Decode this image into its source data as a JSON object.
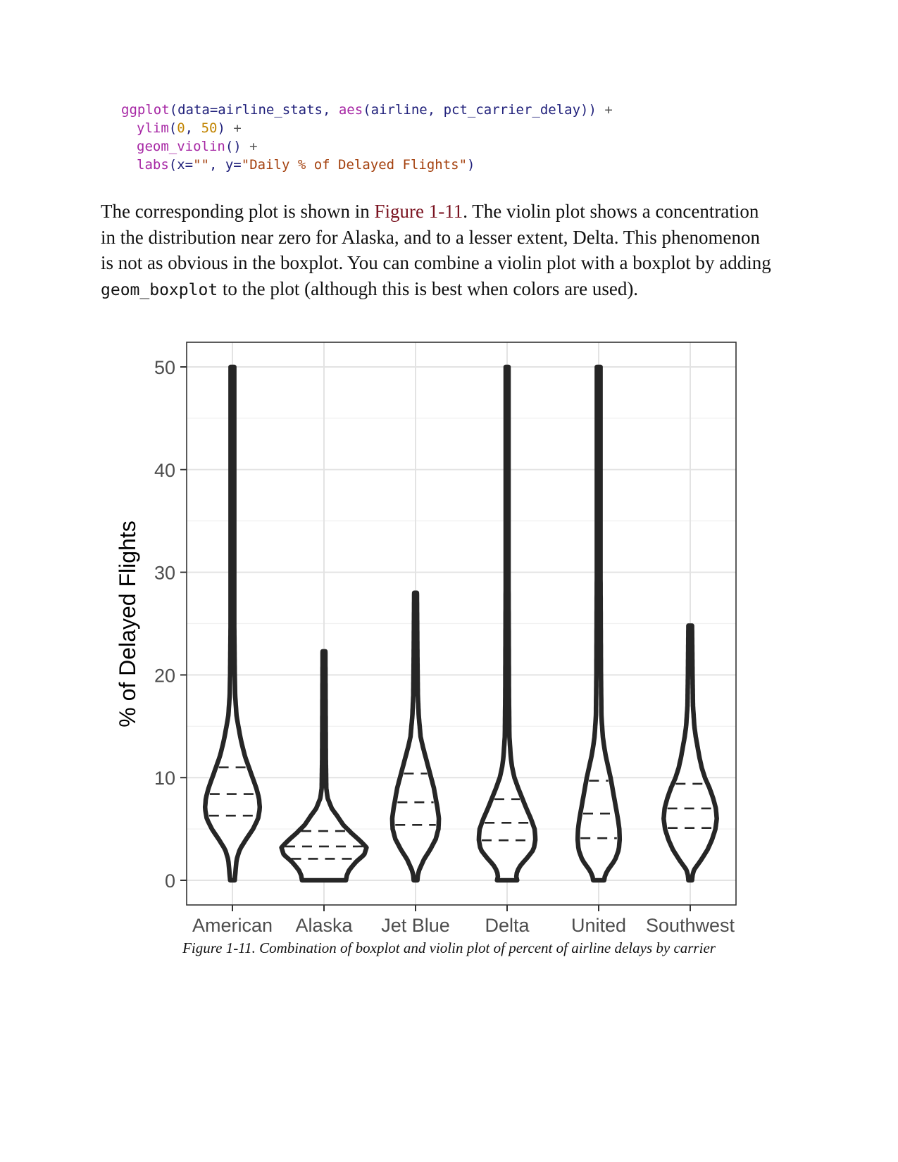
{
  "code": {
    "line1": {
      "fn": "ggplot",
      "a": "(data=airline_stats, ",
      "fn2": "aes",
      "b": "(airline, pct_carrier_delay)) ",
      "op": "+"
    },
    "line2": {
      "fn": "ylim",
      "a": "(",
      "n1": "0",
      "b": ", ",
      "n2": "50",
      "c": ") ",
      "op": "+"
    },
    "line3": {
      "fn": "geom_violin",
      "a": "() ",
      "op": "+"
    },
    "line4": {
      "fn": "labs",
      "a": "(x=",
      "s1": "\"\"",
      "b": ", y=",
      "s2": "\"Daily % of Delayed Flights\"",
      "c": ")"
    }
  },
  "paragraph": {
    "t1": "The corresponding plot is shown in ",
    "xref": "Figure 1-11",
    "t2": ". The violin plot shows a concentration in the distribution near zero for Alaska, and to a lesser extent, Delta. This phenomenon is not as obvious in the boxplot. You can combine a violin plot with a boxplot by adding ",
    "code": "geom_boxplot",
    "t3": " to the plot (although this is best when colors are used)."
  },
  "caption": "Figure 1-11. Combination of boxplot and violin plot of percent of airline delays by carrier",
  "chart_data": {
    "type": "violin",
    "ylabel": "% of Delayed Flights",
    "xlabel": "",
    "ylim": [
      -2.4,
      52.4
    ],
    "yticks": [
      0,
      10,
      20,
      30,
      40,
      50
    ],
    "grid": true,
    "categories": [
      "American",
      "Alaska",
      "Jet Blue",
      "Delta",
      "United",
      "Southwest"
    ],
    "series": [
      {
        "category": "American",
        "min": 0,
        "max": 50,
        "quartiles": [
          6.3,
          8.4,
          11.0
        ],
        "profile": [
          [
            0,
            0.05
          ],
          [
            0.5,
            0.06
          ],
          [
            1,
            0.07
          ],
          [
            2,
            0.09
          ],
          [
            3,
            0.16
          ],
          [
            4,
            0.3
          ],
          [
            5,
            0.45
          ],
          [
            6,
            0.56
          ],
          [
            7,
            0.6
          ],
          [
            8,
            0.58
          ],
          [
            9,
            0.52
          ],
          [
            10,
            0.44
          ],
          [
            11,
            0.36
          ],
          [
            12,
            0.28
          ],
          [
            13,
            0.22
          ],
          [
            14,
            0.17
          ],
          [
            15,
            0.13
          ],
          [
            16,
            0.09
          ],
          [
            18,
            0.06
          ],
          [
            20,
            0.05
          ],
          [
            25,
            0.04
          ],
          [
            35,
            0.04
          ],
          [
            50,
            0.04
          ]
        ]
      },
      {
        "category": "Alaska",
        "min": 0,
        "max": 22.3,
        "quartiles": [
          2.1,
          3.3,
          4.8
        ],
        "profile": [
          [
            0,
            0.48
          ],
          [
            0.5,
            0.5
          ],
          [
            1,
            0.55
          ],
          [
            1.8,
            0.7
          ],
          [
            2.5,
            0.88
          ],
          [
            3.2,
            0.93
          ],
          [
            3.8,
            0.8
          ],
          [
            4.6,
            0.6
          ],
          [
            5.4,
            0.42
          ],
          [
            6.2,
            0.3
          ],
          [
            7,
            0.17
          ],
          [
            8,
            0.08
          ],
          [
            9,
            0.05
          ],
          [
            12,
            0.04
          ],
          [
            22.3,
            0.03
          ]
        ]
      },
      {
        "category": "Jet Blue",
        "min": 0,
        "max": 28.0,
        "quartiles": [
          5.4,
          7.6,
          10.4
        ],
        "profile": [
          [
            0,
            0.04
          ],
          [
            0.5,
            0.05
          ],
          [
            1,
            0.08
          ],
          [
            2,
            0.18
          ],
          [
            3,
            0.32
          ],
          [
            4,
            0.44
          ],
          [
            5,
            0.5
          ],
          [
            6,
            0.51
          ],
          [
            7,
            0.48
          ],
          [
            8,
            0.44
          ],
          [
            9,
            0.4
          ],
          [
            10,
            0.34
          ],
          [
            11,
            0.28
          ],
          [
            12,
            0.22
          ],
          [
            13,
            0.16
          ],
          [
            14,
            0.11
          ],
          [
            16,
            0.07
          ],
          [
            18,
            0.05
          ],
          [
            22,
            0.04
          ],
          [
            28,
            0.03
          ]
        ]
      },
      {
        "category": "Delta",
        "min": 0,
        "max": 50,
        "quartiles": [
          3.9,
          5.6,
          7.9
        ],
        "profile": [
          [
            0,
            0.22
          ],
          [
            0.4,
            0.2
          ],
          [
            0.9,
            0.22
          ],
          [
            1.5,
            0.3
          ],
          [
            2.3,
            0.46
          ],
          [
            3,
            0.58
          ],
          [
            4,
            0.62
          ],
          [
            5,
            0.6
          ],
          [
            6,
            0.52
          ],
          [
            7,
            0.42
          ],
          [
            8,
            0.33
          ],
          [
            9,
            0.24
          ],
          [
            10,
            0.16
          ],
          [
            11,
            0.11
          ],
          [
            12,
            0.08
          ],
          [
            14,
            0.05
          ],
          [
            18,
            0.04
          ],
          [
            30,
            0.03
          ],
          [
            50,
            0.03
          ]
        ]
      },
      {
        "category": "United",
        "min": 0,
        "max": 50,
        "quartiles": [
          4.1,
          6.5,
          9.7
        ],
        "profile": [
          [
            0,
            0.12
          ],
          [
            0.5,
            0.14
          ],
          [
            1,
            0.2
          ],
          [
            2,
            0.36
          ],
          [
            3,
            0.44
          ],
          [
            4,
            0.46
          ],
          [
            5,
            0.45
          ],
          [
            6,
            0.42
          ],
          [
            7,
            0.38
          ],
          [
            8,
            0.34
          ],
          [
            9,
            0.3
          ],
          [
            10,
            0.26
          ],
          [
            11,
            0.21
          ],
          [
            12,
            0.16
          ],
          [
            13,
            0.12
          ],
          [
            14,
            0.09
          ],
          [
            16,
            0.06
          ],
          [
            20,
            0.05
          ],
          [
            30,
            0.04
          ],
          [
            50,
            0.04
          ]
        ]
      },
      {
        "category": "Southwest",
        "min": 0,
        "max": 24.8,
        "quartiles": [
          5.1,
          7.0,
          9.4
        ],
        "profile": [
          [
            0,
            0.04
          ],
          [
            0.5,
            0.05
          ],
          [
            1,
            0.08
          ],
          [
            2,
            0.24
          ],
          [
            3,
            0.38
          ],
          [
            4,
            0.48
          ],
          [
            5,
            0.55
          ],
          [
            6,
            0.58
          ],
          [
            7,
            0.56
          ],
          [
            8,
            0.5
          ],
          [
            9,
            0.42
          ],
          [
            10,
            0.32
          ],
          [
            11,
            0.25
          ],
          [
            12,
            0.2
          ],
          [
            13,
            0.16
          ],
          [
            14,
            0.12
          ],
          [
            15,
            0.09
          ],
          [
            17,
            0.06
          ],
          [
            20,
            0.05
          ],
          [
            24.8,
            0.04
          ]
        ]
      }
    ]
  }
}
